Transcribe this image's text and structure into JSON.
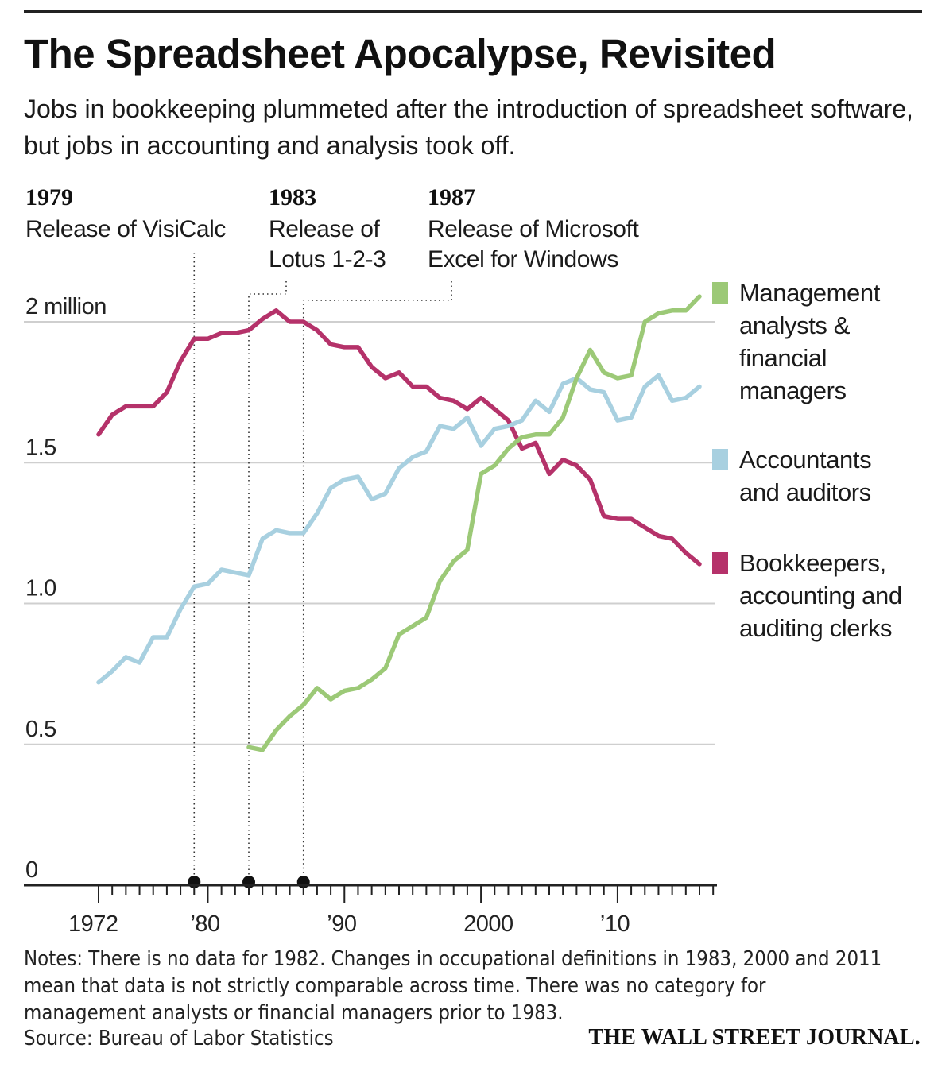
{
  "title": "The Spreadsheet Apocalypse, Revisited",
  "subtitle": "Jobs in bookkeeping plummeted after the introduction of spreadsheet software, but jobs in accounting and analysis took off.",
  "notes": [
    "Notes: There is no data for 1982. Changes in occupational definitions in 1983, 2000 and 2011",
    "mean that data is not strictly comparable across time. There was no category for",
    "management analysts or financial managers prior to 1983."
  ],
  "source": "Source: Bureau of Labor Statistics",
  "brand": "THE WALL STREET JOURNAL.",
  "chart_data": {
    "type": "line",
    "ylim": [
      0,
      2.1
    ],
    "xlim": [
      1972,
      2016
    ],
    "y_ticks": [
      {
        "value": 2.0,
        "label": "2 million"
      },
      {
        "value": 1.5,
        "label": "1.5"
      },
      {
        "value": 1.0,
        "label": "1.0"
      },
      {
        "value": 0.5,
        "label": "0.5"
      },
      {
        "value": 0,
        "label": "0"
      }
    ],
    "x_ticks": [
      {
        "value": 1972,
        "label": "1972"
      },
      {
        "value": 1980,
        "label": "’80"
      },
      {
        "value": 1990,
        "label": "’90"
      },
      {
        "value": 2000,
        "label": "2000"
      },
      {
        "value": 2010,
        "label": "’10"
      }
    ],
    "grid": true,
    "legend_position": "right, aligned with line ends",
    "annotations": [
      {
        "year": 1979,
        "heading": "1979",
        "lines": [
          "Release of VisiCalc"
        ]
      },
      {
        "year": 1983,
        "heading": "1983",
        "lines": [
          "Release of",
          "Lotus 1-2-3"
        ]
      },
      {
        "year": 1987,
        "heading": "1987",
        "lines": [
          "Release of Microsoft",
          "Excel for Windows"
        ]
      }
    ],
    "series": [
      {
        "name_lines": [
          "Management",
          "analysts &",
          "financial",
          "managers"
        ],
        "color": "#9cc977",
        "x": [
          1983,
          1984,
          1985,
          1986,
          1987,
          1988,
          1989,
          1990,
          1991,
          1992,
          1993,
          1994,
          1995,
          1996,
          1997,
          1998,
          1999,
          2000,
          2001,
          2002,
          2003,
          2004,
          2005,
          2006,
          2007,
          2008,
          2009,
          2010,
          2011,
          2012,
          2013,
          2014,
          2015,
          2016
        ],
        "values": [
          0.49,
          0.48,
          0.55,
          0.6,
          0.64,
          0.7,
          0.66,
          0.69,
          0.7,
          0.73,
          0.77,
          0.89,
          0.92,
          0.95,
          1.08,
          1.15,
          1.19,
          1.46,
          1.49,
          1.55,
          1.59,
          1.6,
          1.6,
          1.66,
          1.8,
          1.9,
          1.82,
          1.8,
          1.81,
          2.0,
          2.03,
          2.04,
          2.04,
          2.09
        ]
      },
      {
        "name_lines": [
          "Accountants",
          "and auditors"
        ],
        "color": "#a8d0e0",
        "x": [
          1972,
          1973,
          1974,
          1975,
          1976,
          1977,
          1978,
          1979,
          1980,
          1981,
          1982,
          1983,
          1984,
          1985,
          1986,
          1987,
          1988,
          1989,
          1990,
          1991,
          1992,
          1993,
          1994,
          1995,
          1996,
          1997,
          1998,
          1999,
          2000,
          2001,
          2002,
          2003,
          2004,
          2005,
          2006,
          2007,
          2008,
          2009,
          2010,
          2011,
          2012,
          2013,
          2014,
          2015,
          2016
        ],
        "values": [
          0.72,
          0.76,
          0.81,
          0.79,
          0.88,
          0.88,
          0.98,
          1.06,
          1.07,
          1.12,
          1.11,
          1.1,
          1.23,
          1.26,
          1.25,
          1.25,
          1.32,
          1.41,
          1.44,
          1.45,
          1.37,
          1.39,
          1.48,
          1.52,
          1.54,
          1.63,
          1.62,
          1.66,
          1.56,
          1.62,
          1.63,
          1.65,
          1.72,
          1.68,
          1.78,
          1.8,
          1.76,
          1.75,
          1.65,
          1.66,
          1.77,
          1.81,
          1.72,
          1.73,
          1.77
        ]
      },
      {
        "name_lines": [
          "Bookkeepers,",
          "accounting and",
          "auditing clerks"
        ],
        "color": "#b5326a",
        "x": [
          1972,
          1973,
          1974,
          1975,
          1976,
          1977,
          1978,
          1979,
          1980,
          1981,
          1982,
          1983,
          1984,
          1985,
          1986,
          1987,
          1988,
          1989,
          1990,
          1991,
          1992,
          1993,
          1994,
          1995,
          1996,
          1997,
          1998,
          1999,
          2000,
          2001,
          2002,
          2003,
          2004,
          2005,
          2006,
          2007,
          2008,
          2009,
          2010,
          2011,
          2012,
          2013,
          2014,
          2015,
          2016
        ],
        "values": [
          1.6,
          1.67,
          1.7,
          1.7,
          1.7,
          1.75,
          1.86,
          1.94,
          1.94,
          1.96,
          1.96,
          1.97,
          2.01,
          2.04,
          2.0,
          2.0,
          1.97,
          1.92,
          1.91,
          1.91,
          1.84,
          1.8,
          1.82,
          1.77,
          1.77,
          1.73,
          1.72,
          1.69,
          1.73,
          1.69,
          1.65,
          1.55,
          1.57,
          1.46,
          1.51,
          1.49,
          1.44,
          1.31,
          1.3,
          1.3,
          1.27,
          1.24,
          1.23,
          1.18,
          1.14
        ]
      }
    ]
  }
}
